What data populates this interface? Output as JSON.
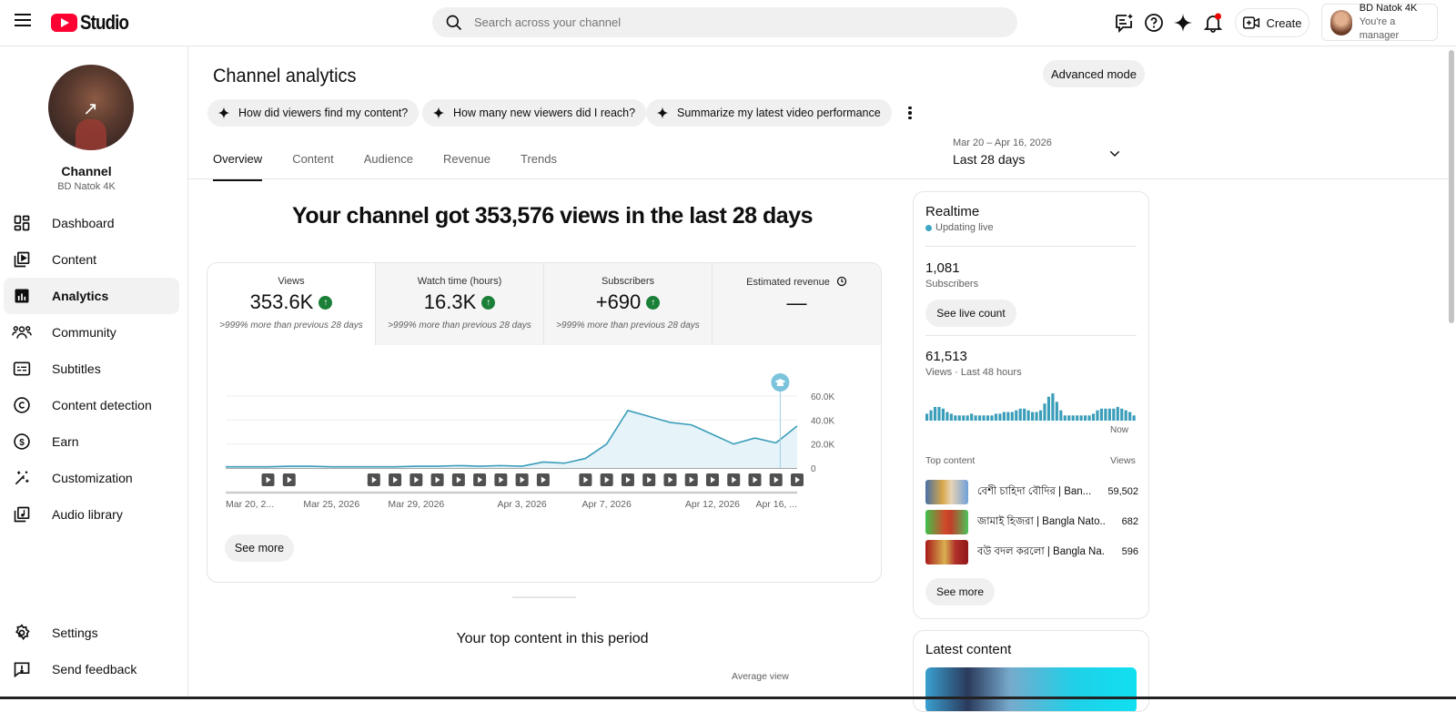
{
  "topbar": {
    "logo_text": "Studio",
    "search_placeholder": "Search across your channel",
    "create_label": "Create",
    "account_name": "BD Natok 4K",
    "account_role": "You're a manager",
    "icons": [
      "hamburger-menu-icon",
      "youtube-logo-icon",
      "search-icon",
      "feedback-sparkle-icon",
      "help-icon",
      "gemini-sparkle-icon",
      "notifications-bell-icon",
      "create-video-icon"
    ]
  },
  "sidebar": {
    "channel_label": "Channel",
    "channel_name": "BD Natok 4K",
    "items": [
      {
        "label": "Dashboard",
        "icon": "dashboard-icon",
        "active": false
      },
      {
        "label": "Content",
        "icon": "content-icon",
        "active": false
      },
      {
        "label": "Analytics",
        "icon": "analytics-icon",
        "active": true
      },
      {
        "label": "Community",
        "icon": "community-icon",
        "active": false
      },
      {
        "label": "Subtitles",
        "icon": "subtitles-icon",
        "active": false
      },
      {
        "label": "Content detection",
        "icon": "copyright-icon",
        "active": false
      },
      {
        "label": "Earn",
        "icon": "dollar-icon",
        "active": false
      },
      {
        "label": "Customization",
        "icon": "magic-wand-icon",
        "active": false
      },
      {
        "label": "Audio library",
        "icon": "audio-library-icon",
        "active": false
      }
    ],
    "bottom_items": [
      {
        "label": "Settings",
        "icon": "gear-icon"
      },
      {
        "label": "Send feedback",
        "icon": "feedback-icon"
      }
    ]
  },
  "page": {
    "title": "Channel analytics",
    "advanced_mode_label": "Advanced mode",
    "chips": [
      "How did viewers find my content?",
      "How many new viewers did I reach?",
      "Summarize my latest video performance"
    ],
    "tabs": [
      "Overview",
      "Content",
      "Audience",
      "Revenue",
      "Trends"
    ],
    "active_tab": "Overview",
    "date_range": "Mar 20 – Apr 16, 2026",
    "date_period": "Last 28 days"
  },
  "overview": {
    "headline": "Your channel got 353,576 views in the last 28 days",
    "metrics": [
      {
        "title": "Views",
        "value": "353.6K",
        "change": ">999% more than previous 28 days",
        "up": true
      },
      {
        "title": "Watch time (hours)",
        "value": "16.3K",
        "change": ">999% more than previous 28 days",
        "up": true
      },
      {
        "title": "Subscribers",
        "value": "+690",
        "change": ">999% more than previous 28 days",
        "up": true
      },
      {
        "title": "Estimated revenue",
        "value": "—",
        "change": "",
        "up": false
      }
    ],
    "see_more_label": "See more",
    "top_content_heading": "Your top content in this period",
    "average_view_label": "Average view"
  },
  "chart_data": {
    "type": "area",
    "title": "Views",
    "x": [
      "Mar 20",
      "Mar 21",
      "Mar 22",
      "Mar 23",
      "Mar 24",
      "Mar 25",
      "Mar 26",
      "Mar 27",
      "Mar 28",
      "Mar 29",
      "Mar 30",
      "Mar 31",
      "Apr 1",
      "Apr 2",
      "Apr 3",
      "Apr 4",
      "Apr 5",
      "Apr 6",
      "Apr 7",
      "Apr 8",
      "Apr 9",
      "Apr 10",
      "Apr 11",
      "Apr 12",
      "Apr 13",
      "Apr 14",
      "Apr 15",
      "Apr 16"
    ],
    "series": [
      {
        "name": "Views",
        "values": [
          1000,
          1000,
          1000,
          1500,
          1500,
          1000,
          1000,
          1000,
          1000,
          1500,
          1500,
          2000,
          1500,
          2000,
          1500,
          5000,
          4000,
          8000,
          20000,
          48000,
          43000,
          38000,
          36000,
          28000,
          20000,
          25000,
          21000,
          35000
        ]
      }
    ],
    "x_tick_labels": [
      "Mar 20, 2...",
      "Mar 25, 2026",
      "Mar 29, 2026",
      "Apr 3, 2026",
      "Apr 7, 2026",
      "Apr 12, 2026",
      "Apr 16, ..."
    ],
    "y_tick_labels": [
      "0",
      "20.0K",
      "40.0K",
      "60.0K"
    ],
    "ylim": [
      0,
      60000
    ],
    "grid": true,
    "y_axis_position": "right",
    "video_markers_days": [
      3,
      4,
      8,
      9,
      10,
      11,
      12,
      13,
      14,
      15,
      16,
      18,
      19,
      20,
      21,
      22,
      23,
      24,
      25,
      26,
      27,
      28
    ],
    "color": "#3a9dba"
  },
  "realtime": {
    "title": "Realtime",
    "status": "Updating live",
    "subscribers": "1,081",
    "subscribers_label": "Subscribers",
    "see_live_count_label": "See live count",
    "views": "61,513",
    "views_label": "Views · Last 48 hours",
    "now_label": "Now",
    "bars": [
      3,
      5,
      7,
      7,
      6,
      4,
      3,
      2,
      2,
      2,
      2,
      3,
      2,
      2,
      2,
      2,
      2,
      3,
      3,
      4,
      4,
      4,
      5,
      6,
      6,
      5,
      4,
      4,
      5,
      9,
      13,
      15,
      10,
      5,
      2,
      2,
      2,
      2,
      2,
      2,
      2,
      3,
      5,
      6,
      6,
      6,
      6,
      7,
      6,
      5,
      4,
      2
    ],
    "top_content_label": "Top content",
    "views_col_label": "Views",
    "top_content": [
      {
        "title": "বেশী চাহিদা বৌদির | Ban...",
        "views": "59,502"
      },
      {
        "title": "জামাই হিজরা | Bangla Nato...",
        "views": "682"
      },
      {
        "title": "বউ বদল করলো | Bangla Na...",
        "views": "596"
      }
    ],
    "see_more_label": "See more"
  },
  "latest": {
    "title": "Latest content"
  }
}
